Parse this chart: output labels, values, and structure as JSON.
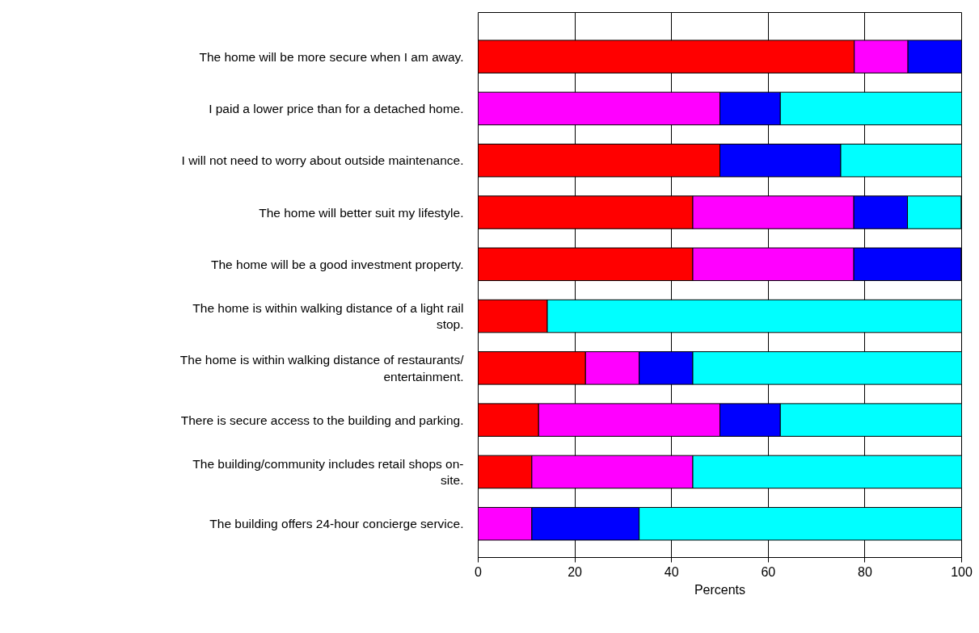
{
  "chart_data": {
    "type": "bar",
    "orientation": "horizontal",
    "stacked": true,
    "xlabel": "Percents",
    "categories": [
      "The home will be more secure when I am away.",
      "I paid a lower price than for a detached home.",
      "I will not need to worry about outside maintenance.",
      "The home will better suit my lifestyle.",
      "The home will be a good investment property.",
      "The home is within walking distance of a light rail stop.",
      "The home is within walking distance of restaurants/ entertainment.",
      "There is secure access to the building and parking.",
      "The building/community includes retail shops on-site.",
      "The building offers 24-hour concierge service."
    ],
    "series": [
      {
        "color": "#ff0000",
        "values": [
          77.8,
          null,
          50,
          44.4,
          44.4,
          14.3,
          22.2,
          12.5,
          11.1,
          null
        ]
      },
      {
        "color": "#ff00ff",
        "values": [
          11.1,
          50,
          null,
          33.3,
          33.3,
          null,
          11.1,
          37.5,
          33.3,
          11.1
        ]
      },
      {
        "color": "#0000ff",
        "values": [
          11.1,
          12.5,
          25,
          11.1,
          22.2,
          null,
          11.1,
          12.5,
          null,
          22.2
        ]
      },
      {
        "color": "#00ffff",
        "values": [
          null,
          37.5,
          25,
          11.1,
          null,
          85.7,
          55.6,
          37.5,
          55.6,
          66.7
        ]
      }
    ],
    "xlim": [
      0,
      100
    ],
    "xticks": [
      0,
      20,
      40,
      60,
      80,
      100
    ],
    "grid": "x"
  }
}
